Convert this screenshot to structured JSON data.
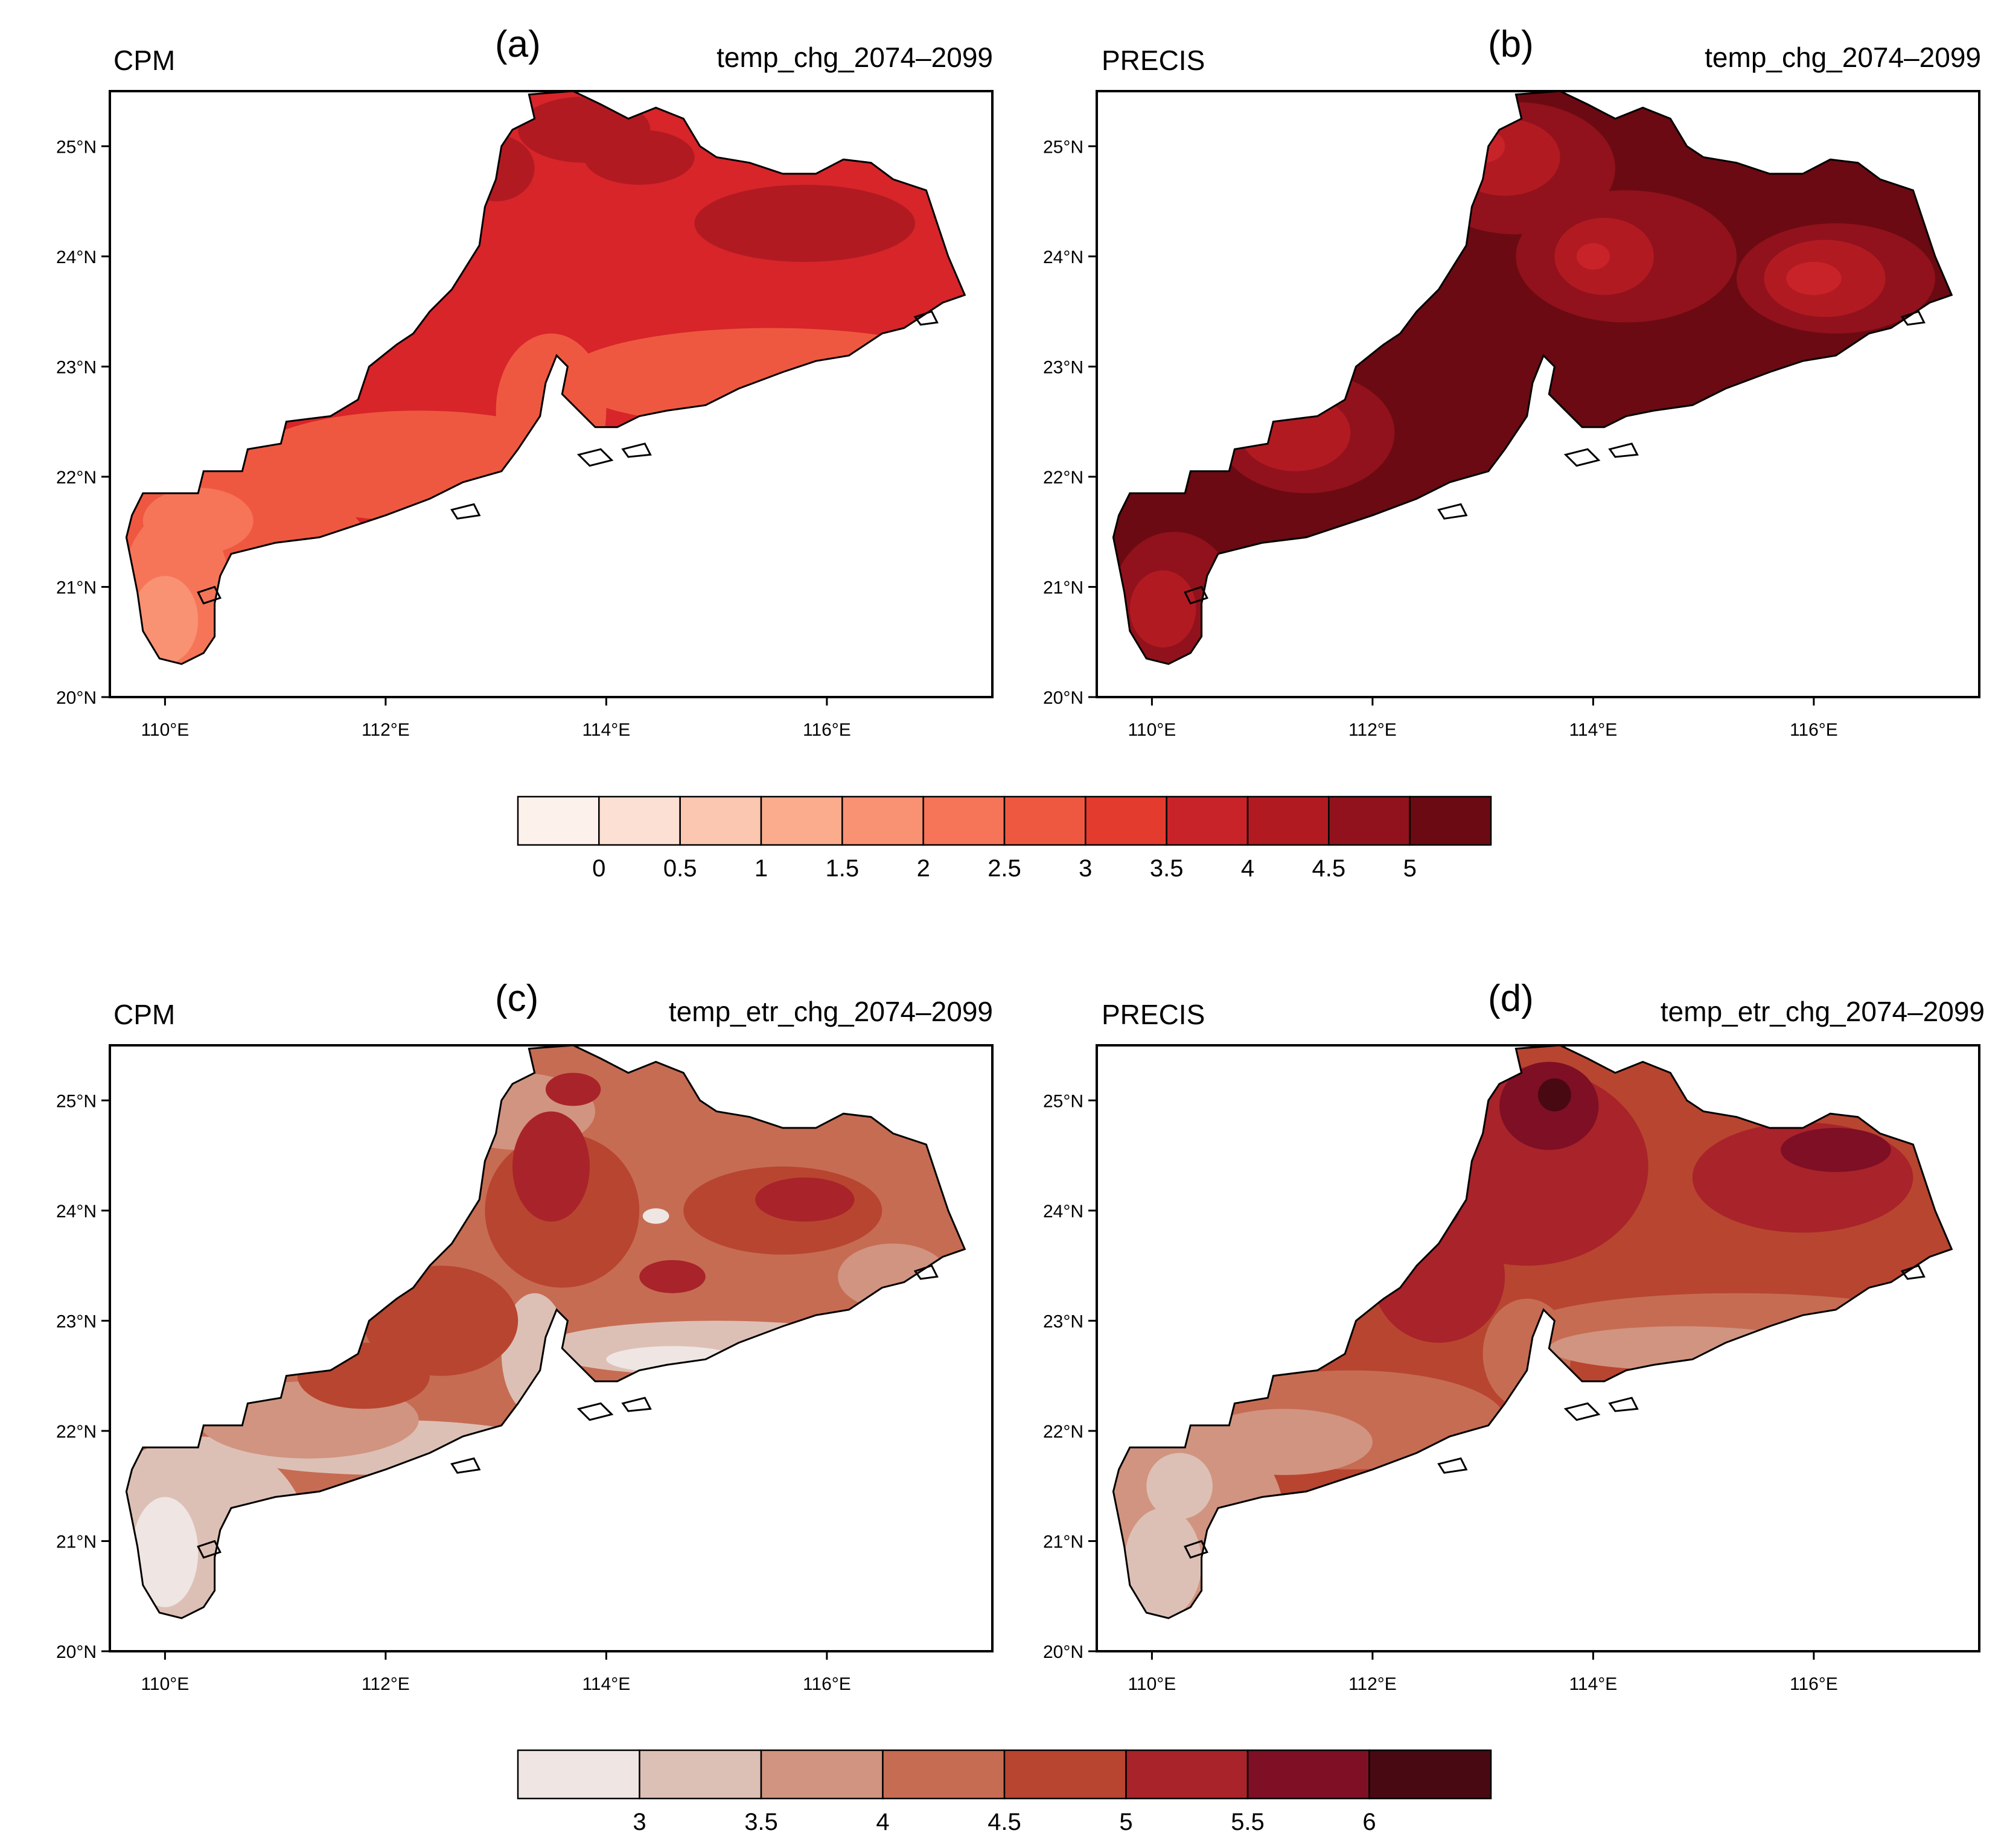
{
  "figure": {
    "panels": [
      {
        "letter": "(a)",
        "model": "CPM",
        "variable": "temp_chg_2074–2099",
        "style": "cpm_a",
        "scale": "top"
      },
      {
        "letter": "(b)",
        "model": "PRECIS",
        "variable": "temp_chg_2074–2099",
        "style": "precis_b",
        "scale": "top"
      },
      {
        "letter": "(c)",
        "model": "CPM",
        "variable": "temp_etr_chg_2074–2099",
        "style": "cpm_c",
        "scale": "bottom"
      },
      {
        "letter": "(d)",
        "model": "PRECIS",
        "variable": "temp_etr_chg_2074–2099",
        "style": "precis_d",
        "scale": "bottom"
      }
    ],
    "lat_ticks": [
      "25°N",
      "24°N",
      "23°N",
      "22°N",
      "21°N",
      "20°N"
    ],
    "lon_ticks": [
      "110°E",
      "112°E",
      "114°E",
      "116°E"
    ],
    "lat_values": [
      25,
      24,
      23,
      22,
      21,
      20
    ],
    "lon_values": [
      110,
      112,
      114,
      116
    ],
    "lon_range": [
      109.5,
      117.5
    ],
    "lat_range": [
      20.0,
      25.5
    ]
  },
  "colorbars": {
    "top": {
      "labels": [
        "0",
        "0.5",
        "1",
        "1.5",
        "2",
        "2.5",
        "3",
        "3.5",
        "4",
        "4.5",
        "5"
      ],
      "colors": [
        "#fdf1ec",
        "#fde0d4",
        "#fcc7b0",
        "#fbac8d",
        "#f99173",
        "#f67558",
        "#ef5840",
        "#e33b2d",
        "#c9232a",
        "#b21a22",
        "#91121c",
        "#6b0a12"
      ]
    },
    "bottom": {
      "labels": [
        "3",
        "3.5",
        "4",
        "4.5",
        "5",
        "5.5",
        "6"
      ],
      "colors": [
        "#efe6e3",
        "#ddc0b5",
        "#d19480",
        "#c66c53",
        "#b84530",
        "#a9232a",
        "#7e0f25",
        "#490912"
      ]
    }
  }
}
